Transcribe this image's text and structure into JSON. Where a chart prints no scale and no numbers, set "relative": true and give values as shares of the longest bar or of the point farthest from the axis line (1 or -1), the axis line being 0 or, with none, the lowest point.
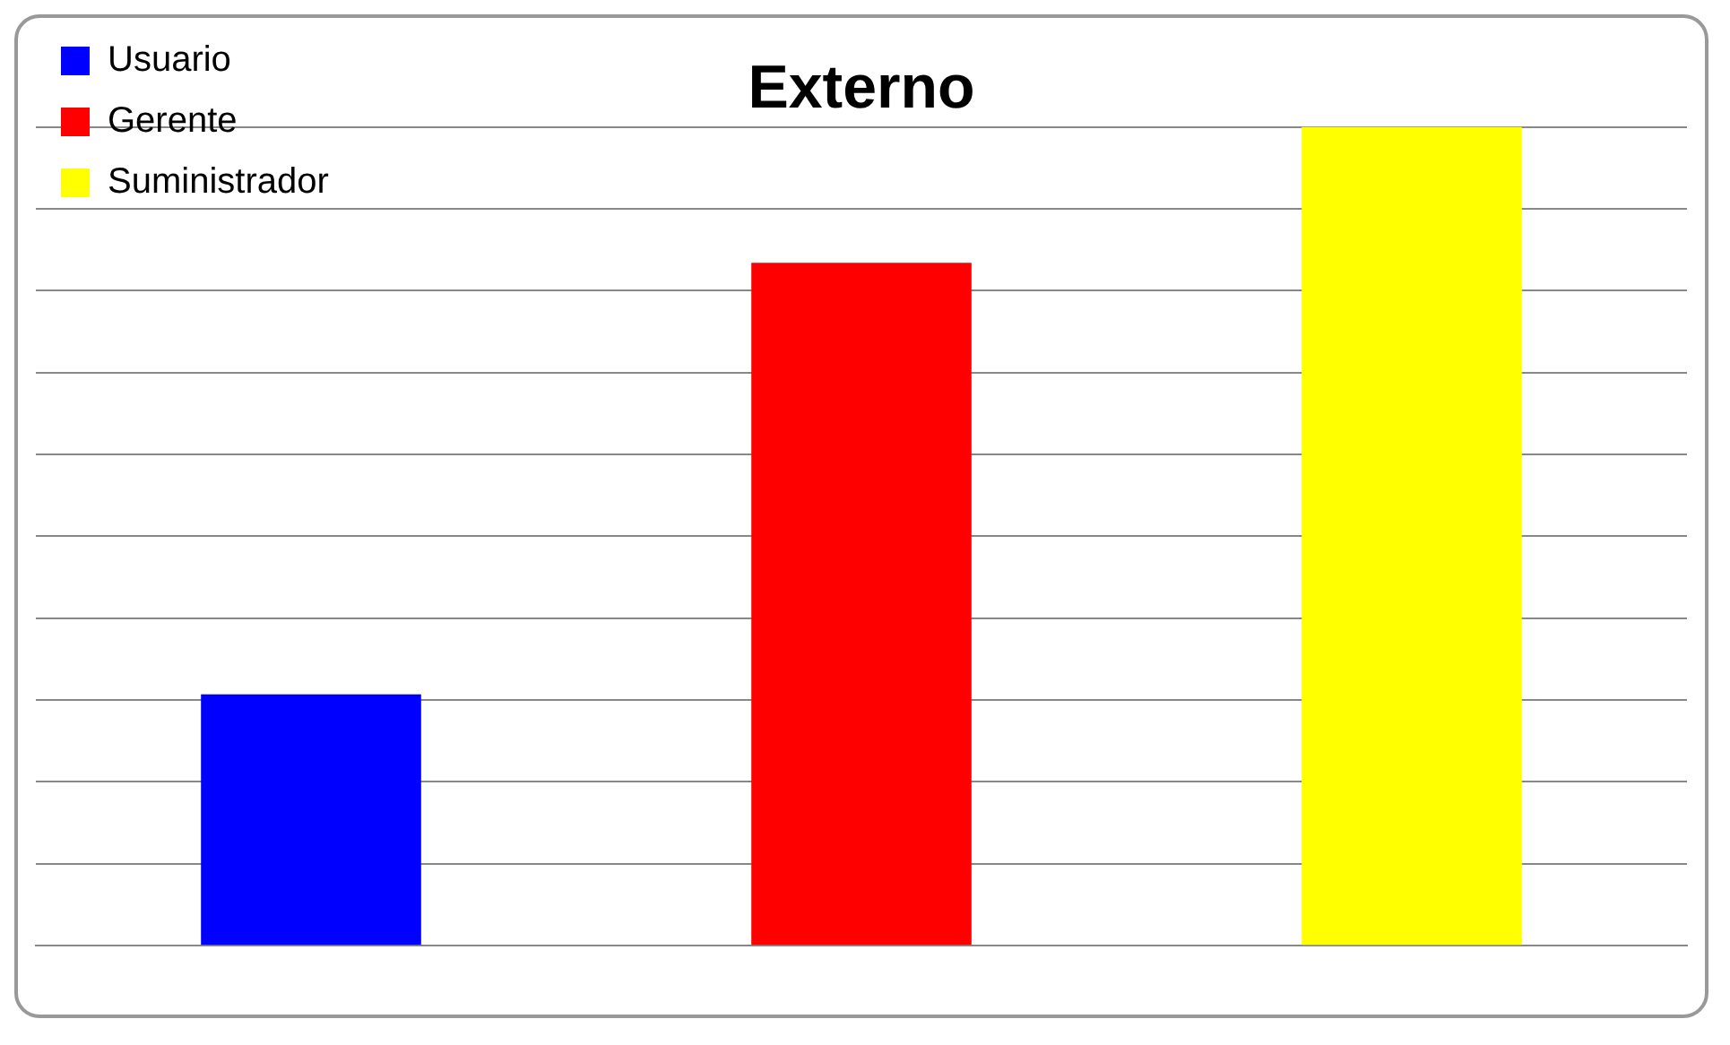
{
  "chart_data": {
    "type": "bar",
    "title": "Externo",
    "relative": true,
    "categories": [
      null,
      null,
      null
    ],
    "series": [
      {
        "name": "Usuario",
        "color": "#0000ff",
        "values": [
          0.307,
          null,
          null
        ]
      },
      {
        "name": "Gerente",
        "color": "#ff0000",
        "values": [
          null,
          0.834,
          null
        ]
      },
      {
        "name": "Suministrador",
        "color": "#ffff00",
        "values": [
          null,
          null,
          1
        ]
      }
    ],
    "stacked": true,
    "grid": "y",
    "legend": "top left"
  }
}
